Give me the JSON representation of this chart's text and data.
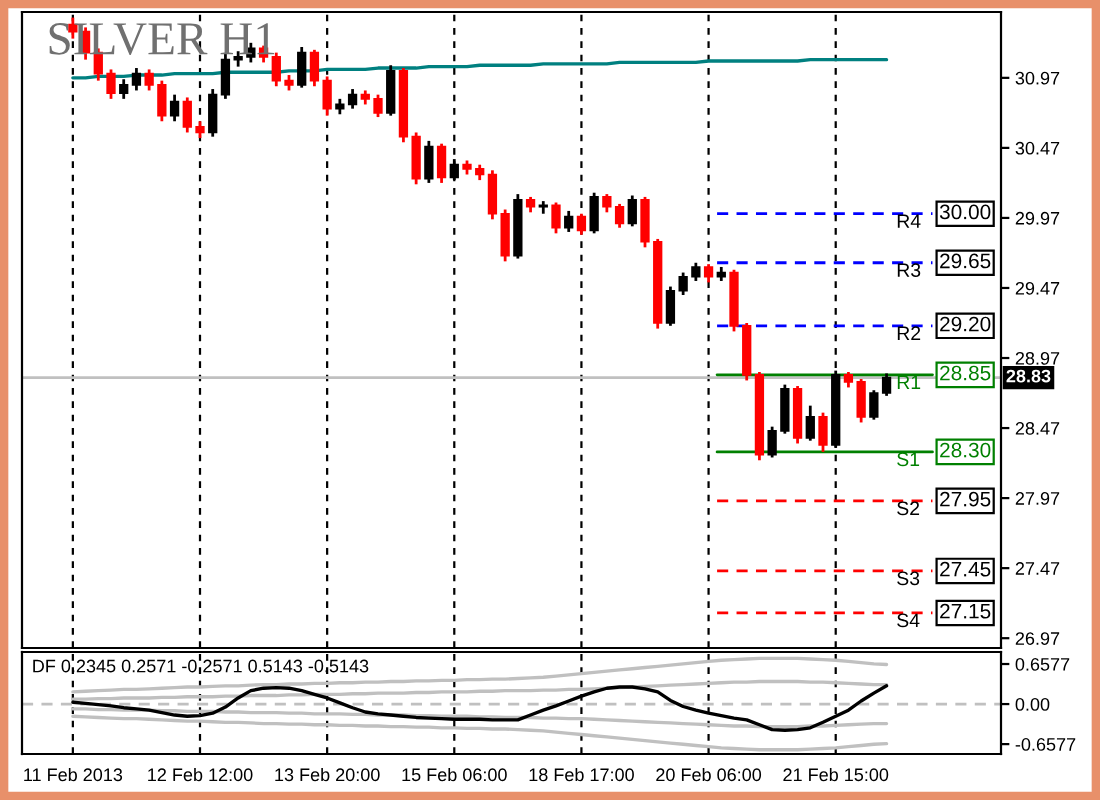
{
  "chart_data": [
    {
      "type": "candlestick",
      "title": "SILVER H1",
      "categories": [
        null,
        null,
        null,
        null,
        null,
        null,
        null,
        null,
        null,
        null,
        null,
        null,
        null,
        null,
        null,
        null,
        null,
        null,
        null,
        null,
        null,
        null,
        null,
        null,
        null,
        null,
        null,
        null,
        null,
        null,
        null,
        null,
        null,
        null,
        null,
        null,
        null,
        null,
        null,
        null,
        null,
        null,
        null,
        null,
        null,
        null,
        null,
        null,
        null,
        null,
        null,
        null,
        null,
        null,
        null,
        null,
        null,
        null,
        null,
        null,
        null,
        null,
        null,
        null,
        null
      ],
      "ohlc": [
        [
          31.35,
          31.4,
          31.25,
          31.3
        ],
        [
          31.3,
          31.33,
          31.1,
          31.15
        ],
        [
          31.15,
          31.18,
          30.95,
          31.0
        ],
        [
          31.0,
          31.03,
          30.82,
          30.86
        ],
        [
          30.86,
          30.96,
          30.82,
          30.92
        ],
        [
          30.92,
          31.04,
          30.88,
          31.0
        ],
        [
          31.0,
          31.03,
          30.88,
          30.92
        ],
        [
          30.92,
          30.95,
          30.66,
          30.7
        ],
        [
          30.7,
          30.85,
          30.66,
          30.8
        ],
        [
          30.8,
          30.83,
          30.58,
          30.62
        ],
        [
          30.62,
          30.66,
          30.54,
          30.58
        ],
        [
          30.58,
          30.89,
          30.55,
          30.85
        ],
        [
          30.85,
          31.14,
          30.82,
          31.1
        ],
        [
          31.1,
          31.16,
          31.05,
          31.12
        ],
        [
          31.12,
          31.22,
          31.08,
          31.18
        ],
        [
          31.18,
          31.2,
          31.08,
          31.12
        ],
        [
          31.12,
          31.15,
          30.91,
          30.95
        ],
        [
          30.95,
          30.99,
          30.88,
          30.92
        ],
        [
          30.92,
          31.19,
          30.9,
          31.15
        ],
        [
          31.15,
          31.17,
          30.91,
          30.95
        ],
        [
          30.95,
          30.98,
          30.7,
          30.75
        ],
        [
          30.75,
          30.82,
          30.71,
          30.78
        ],
        [
          30.78,
          30.89,
          30.75,
          30.85
        ],
        [
          30.85,
          30.88,
          30.78,
          30.82
        ],
        [
          30.82,
          30.85,
          30.69,
          30.72
        ],
        [
          30.72,
          31.06,
          30.7,
          31.02
        ],
        [
          31.02,
          31.04,
          30.51,
          30.55
        ],
        [
          30.55,
          30.58,
          30.21,
          30.25
        ],
        [
          30.25,
          30.52,
          30.22,
          30.48
        ],
        [
          30.48,
          30.5,
          30.22,
          30.26
        ],
        [
          30.26,
          30.39,
          30.24,
          30.35
        ],
        [
          30.35,
          30.38,
          30.28,
          30.32
        ],
        [
          30.32,
          30.35,
          30.24,
          30.28
        ],
        [
          30.28,
          30.31,
          29.96,
          30.0
        ],
        [
          30.0,
          30.03,
          29.66,
          29.7
        ],
        [
          29.7,
          30.14,
          29.68,
          30.1
        ],
        [
          30.1,
          30.12,
          30.01,
          30.05
        ],
        [
          30.05,
          30.09,
          30.0,
          30.06
        ],
        [
          30.06,
          30.08,
          29.86,
          29.9
        ],
        [
          29.9,
          30.02,
          29.87,
          29.98
        ],
        [
          29.98,
          30.0,
          29.85,
          29.88
        ],
        [
          29.88,
          30.15,
          29.86,
          30.12
        ],
        [
          30.12,
          30.14,
          30.01,
          30.05
        ],
        [
          30.05,
          30.07,
          29.9,
          29.93
        ],
        [
          29.93,
          30.13,
          29.91,
          30.1
        ],
        [
          30.1,
          30.12,
          29.76,
          29.8
        ],
        [
          29.8,
          29.82,
          29.18,
          29.22
        ],
        [
          29.22,
          29.48,
          29.2,
          29.45
        ],
        [
          29.45,
          29.58,
          29.42,
          29.55
        ],
        [
          29.55,
          29.65,
          29.52,
          29.62
        ],
        [
          29.62,
          29.64,
          29.51,
          29.55
        ],
        [
          29.55,
          29.62,
          29.52,
          29.58
        ],
        [
          29.58,
          29.6,
          29.16,
          29.2
        ],
        [
          29.2,
          29.22,
          28.81,
          28.85
        ],
        [
          28.85,
          28.87,
          28.24,
          28.28
        ],
        [
          28.28,
          28.48,
          28.26,
          28.45
        ],
        [
          28.45,
          28.78,
          28.43,
          28.75
        ],
        [
          28.75,
          28.77,
          28.36,
          28.4
        ],
        [
          28.4,
          28.63,
          28.38,
          28.55
        ],
        [
          28.55,
          28.58,
          28.3,
          28.35
        ],
        [
          28.35,
          28.88,
          28.33,
          28.85
        ],
        [
          28.85,
          28.87,
          28.76,
          28.8
        ],
        [
          28.8,
          28.82,
          28.51,
          28.55
        ],
        [
          28.55,
          28.74,
          28.53,
          28.72
        ],
        [
          28.72,
          28.86,
          28.7,
          28.83
        ]
      ],
      "colors": [
        "#ff0000",
        "#ff0000",
        "#ff0000",
        "#ff0000",
        "#000000",
        "#000000",
        "#ff0000",
        "#ff0000",
        "#000000",
        "#ff0000",
        "#ff0000",
        "#000000",
        "#000000",
        "#000000",
        "#000000",
        "#ff0000",
        "#ff0000",
        "#ff0000",
        "#000000",
        "#ff0000",
        "#ff0000",
        "#000000",
        "#000000",
        "#ff0000",
        "#ff0000",
        "#000000",
        "#ff0000",
        "#ff0000",
        "#000000",
        "#ff0000",
        "#000000",
        "#ff0000",
        "#ff0000",
        "#ff0000",
        "#ff0000",
        "#000000",
        "#ff0000",
        "#000000",
        "#ff0000",
        "#000000",
        "#ff0000",
        "#000000",
        "#ff0000",
        "#ff0000",
        "#000000",
        "#ff0000",
        "#ff0000",
        "#000000",
        "#000000",
        "#000000",
        "#ff0000",
        "#000000",
        "#ff0000",
        "#ff0000",
        "#ff0000",
        "#000000",
        "#000000",
        "#ff0000",
        "#000000",
        "#ff0000",
        "#000000",
        "#ff0000",
        "#ff0000",
        "#000000",
        "#000000"
      ],
      "series": [
        {
          "type": "line",
          "color": "#008080",
          "values": [
            30.97,
            30.97,
            30.98,
            30.98,
            30.98,
            30.99,
            30.99,
            30.99,
            31.0,
            31.0,
            31.0,
            31.0,
            31.01,
            31.01,
            31.01,
            31.01,
            31.01,
            31.02,
            31.02,
            31.02,
            31.03,
            31.03,
            31.03,
            31.03,
            31.04,
            31.04,
            31.04,
            31.04,
            31.05,
            31.05,
            31.05,
            31.05,
            31.06,
            31.06,
            31.06,
            31.06,
            31.06,
            31.07,
            31.07,
            31.07,
            31.07,
            31.07,
            31.07,
            31.08,
            31.08,
            31.08,
            31.08,
            31.08,
            31.08,
            31.08,
            31.09,
            31.09,
            31.09,
            31.09,
            31.09,
            31.09,
            31.09,
            31.09,
            31.1,
            31.1,
            31.1,
            31.1,
            31.1,
            31.1,
            31.1
          ]
        }
      ],
      "ylim": [
        26.9,
        31.44
      ],
      "yticks": [
        26.97,
        27.47,
        27.97,
        28.47,
        28.97,
        29.47,
        29.97,
        30.47,
        30.97
      ],
      "ref_lines": [
        {
          "axis": "y",
          "value": 30.0,
          "label": "R4",
          "color": "#0000ff",
          "line_style": "dashed"
        },
        {
          "axis": "y",
          "value": 29.65,
          "label": "R3",
          "color": "#0000ff",
          "line_style": "dashed"
        },
        {
          "axis": "y",
          "value": 29.2,
          "label": "R2",
          "color": "#0000ff",
          "line_style": "dashed"
        },
        {
          "axis": "y",
          "value": 28.85,
          "label": "R1",
          "color": "#008000",
          "line_style": "solid"
        },
        {
          "axis": "y",
          "value": 28.3,
          "label": "S1",
          "color": "#008000",
          "line_style": "solid"
        },
        {
          "axis": "y",
          "value": 27.95,
          "label": "S2",
          "color": "#ff0000",
          "line_style": "dashed"
        },
        {
          "axis": "y",
          "value": 27.45,
          "label": "S3",
          "color": "#ff0000",
          "line_style": "dashed"
        },
        {
          "axis": "y",
          "value": 27.15,
          "label": "S4",
          "color": "#ff0000",
          "line_style": "dashed"
        },
        {
          "axis": "y",
          "value": 28.83,
          "label": "28.83",
          "color": "#c0c0c0",
          "line_style": "solid"
        }
      ],
      "annotations": [
        "30.00",
        "29.65",
        "29.20",
        "28.85",
        "28.30",
        "27.95",
        "27.45",
        "27.15"
      ],
      "grid": "x",
      "legend": false
    },
    {
      "type": "line",
      "title": "DF 0.2345 0.2571 -0.2571 0.5143 -0.5143",
      "categories": [
        "11 Feb 2013",
        null,
        null,
        null,
        null,
        null,
        null,
        null,
        null,
        null,
        "12 Feb 12:00",
        null,
        null,
        null,
        null,
        null,
        null,
        null,
        null,
        null,
        "13 Feb 20:00",
        null,
        null,
        null,
        null,
        null,
        null,
        null,
        null,
        null,
        "15 Feb 06:00",
        null,
        null,
        null,
        null,
        null,
        null,
        null,
        null,
        null,
        "18 Feb 17:00",
        null,
        null,
        null,
        null,
        null,
        null,
        null,
        null,
        null,
        "20 Feb 06:00",
        null,
        null,
        null,
        null,
        null,
        null,
        null,
        null,
        null,
        "21 Feb 15:00",
        null,
        null,
        null,
        null
      ],
      "series": [
        {
          "color": "#c0c0c0",
          "values": [
            0.2,
            0.21,
            0.22,
            0.23,
            0.24,
            0.24,
            0.25,
            0.26,
            0.27,
            0.28,
            0.28,
            0.29,
            0.3,
            0.3,
            0.31,
            0.32,
            0.32,
            0.33,
            0.33,
            0.34,
            0.34,
            0.35,
            0.35,
            0.36,
            0.36,
            0.37,
            0.37,
            0.38,
            0.38,
            0.39,
            0.39,
            0.4,
            0.4,
            0.41,
            0.41,
            0.42,
            0.43,
            0.44,
            0.46,
            0.48,
            0.5,
            0.52,
            0.54,
            0.56,
            0.58,
            0.6,
            0.62,
            0.64,
            0.66,
            0.68,
            0.7,
            0.72,
            0.73,
            0.74,
            0.75,
            0.75,
            0.75,
            0.75,
            0.74,
            0.73,
            0.72,
            0.7,
            0.68,
            0.66,
            0.65
          ]
        },
        {
          "color": "#c0c0c0",
          "values": [
            0.08,
            0.08,
            0.09,
            0.09,
            0.1,
            0.1,
            0.1,
            0.11,
            0.11,
            0.12,
            0.12,
            0.12,
            0.13,
            0.13,
            0.14,
            0.14,
            0.14,
            0.15,
            0.15,
            0.16,
            0.16,
            0.16,
            0.17,
            0.17,
            0.18,
            0.18,
            0.18,
            0.19,
            0.19,
            0.2,
            0.2,
            0.2,
            0.21,
            0.21,
            0.22,
            0.22,
            0.22,
            0.23,
            0.23,
            0.24,
            0.24,
            0.25,
            0.26,
            0.27,
            0.28,
            0.29,
            0.3,
            0.31,
            0.32,
            0.33,
            0.34,
            0.35,
            0.36,
            0.36,
            0.37,
            0.37,
            0.37,
            0.37,
            0.36,
            0.36,
            0.35,
            0.34,
            0.33,
            0.32,
            0.32
          ]
        },
        {
          "color": "#c0c0c0",
          "values": [
            -0.08,
            -0.08,
            -0.09,
            -0.09,
            -0.1,
            -0.1,
            -0.1,
            -0.11,
            -0.11,
            -0.12,
            -0.12,
            -0.12,
            -0.13,
            -0.13,
            -0.14,
            -0.14,
            -0.14,
            -0.15,
            -0.15,
            -0.16,
            -0.16,
            -0.16,
            -0.17,
            -0.17,
            -0.18,
            -0.18,
            -0.18,
            -0.19,
            -0.19,
            -0.2,
            -0.2,
            -0.2,
            -0.21,
            -0.21,
            -0.22,
            -0.22,
            -0.22,
            -0.23,
            -0.23,
            -0.24,
            -0.24,
            -0.25,
            -0.26,
            -0.27,
            -0.28,
            -0.29,
            -0.3,
            -0.31,
            -0.32,
            -0.33,
            -0.34,
            -0.35,
            -0.36,
            -0.36,
            -0.37,
            -0.37,
            -0.37,
            -0.37,
            -0.36,
            -0.36,
            -0.35,
            -0.34,
            -0.33,
            -0.32,
            -0.32
          ]
        },
        {
          "color": "#c0c0c0",
          "values": [
            -0.2,
            -0.21,
            -0.22,
            -0.23,
            -0.24,
            -0.24,
            -0.25,
            -0.26,
            -0.27,
            -0.28,
            -0.28,
            -0.29,
            -0.3,
            -0.3,
            -0.31,
            -0.32,
            -0.32,
            -0.33,
            -0.33,
            -0.34,
            -0.34,
            -0.35,
            -0.35,
            -0.36,
            -0.36,
            -0.37,
            -0.37,
            -0.38,
            -0.38,
            -0.39,
            -0.39,
            -0.4,
            -0.4,
            -0.41,
            -0.41,
            -0.42,
            -0.43,
            -0.44,
            -0.46,
            -0.48,
            -0.5,
            -0.52,
            -0.54,
            -0.56,
            -0.58,
            -0.6,
            -0.62,
            -0.64,
            -0.66,
            -0.68,
            -0.7,
            -0.72,
            -0.73,
            -0.74,
            -0.75,
            -0.75,
            -0.75,
            -0.75,
            -0.74,
            -0.73,
            -0.72,
            -0.7,
            -0.68,
            -0.66,
            -0.65
          ]
        },
        {
          "color": "#000000",
          "values": [
            0.03,
            0.01,
            -0.01,
            -0.03,
            -0.06,
            -0.08,
            -0.1,
            -0.14,
            -0.18,
            -0.2,
            -0.19,
            -0.15,
            -0.05,
            0.1,
            0.22,
            0.26,
            0.27,
            0.26,
            0.22,
            0.16,
            0.1,
            0.02,
            -0.06,
            -0.13,
            -0.16,
            -0.18,
            -0.2,
            -0.22,
            -0.23,
            -0.24,
            -0.25,
            -0.25,
            -0.25,
            -0.26,
            -0.26,
            -0.26,
            -0.18,
            -0.1,
            -0.03,
            0.05,
            0.13,
            0.2,
            0.26,
            0.28,
            0.28,
            0.25,
            0.2,
            0.06,
            -0.04,
            -0.1,
            -0.15,
            -0.19,
            -0.23,
            -0.26,
            -0.34,
            -0.42,
            -0.43,
            -0.42,
            -0.39,
            -0.3,
            -0.2,
            -0.1,
            0.05,
            0.18,
            0.3
          ]
        }
      ],
      "ylim": [
        -0.82,
        0.855
      ],
      "yticks": [
        -0.6577,
        {
          "value": 0,
          "label": "0.00"
        },
        0.6577
      ],
      "ref_lines": [
        {
          "axis": "y",
          "value": 0,
          "color": "#c0c0c0",
          "line_style": "dashed"
        }
      ],
      "grid": "x",
      "legend": false
    }
  ]
}
